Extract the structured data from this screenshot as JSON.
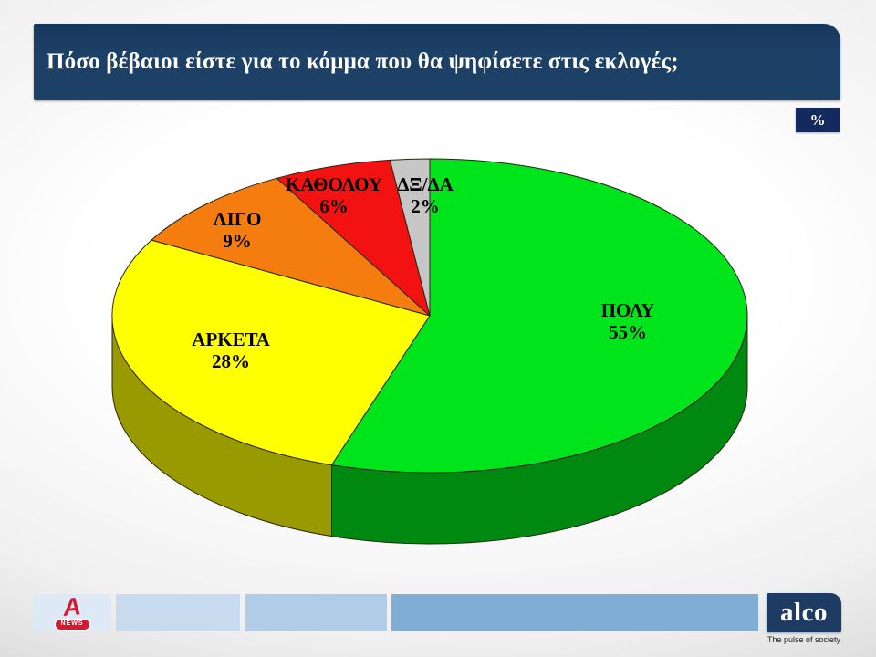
{
  "title_bar": {
    "question": "Πόσο βέβαιοι είστε για το κόμμα που θα ψηφίσετε στις εκλογές;"
  },
  "unit_badge": "%",
  "chart_data": {
    "type": "pie",
    "style": "3d",
    "title": "Πόσο βέβαιοι είστε για το κόμμα που θα ψηφίσετε στις εκλογές;",
    "unit": "%",
    "direction": "clockwise",
    "start_angle_deg": 0,
    "labels": [
      "ΠΟΛΥ",
      "ΑΡΚΕΤΑ",
      "ΛΙΓΟ",
      "ΚΑΘΟΛΟΥ",
      "ΔΞ/ΔΑ"
    ],
    "values": [
      55,
      28,
      9,
      6,
      2
    ],
    "slice_colors": [
      "#00e41c",
      "#ffff00",
      "#f57d10",
      "#f21212",
      "#c6c6c6"
    ],
    "outline_color": "#262612"
  },
  "footer": {
    "alpha_news": {
      "letter": "A",
      "badge": "NEWS"
    },
    "alco": {
      "name": "alco",
      "tagline": "The pulse of society"
    }
  },
  "colors": {
    "title_bar_bg": "#1d4066",
    "title_bar_top": "#16375e",
    "badge_bg": "#142a5e",
    "alco_bg": "#1d3b63",
    "alpha_red": "#d41a30",
    "footer_segments": [
      "#dde9f4",
      "#c8dbee",
      "#b0cce7",
      "#7fadd6"
    ]
  }
}
